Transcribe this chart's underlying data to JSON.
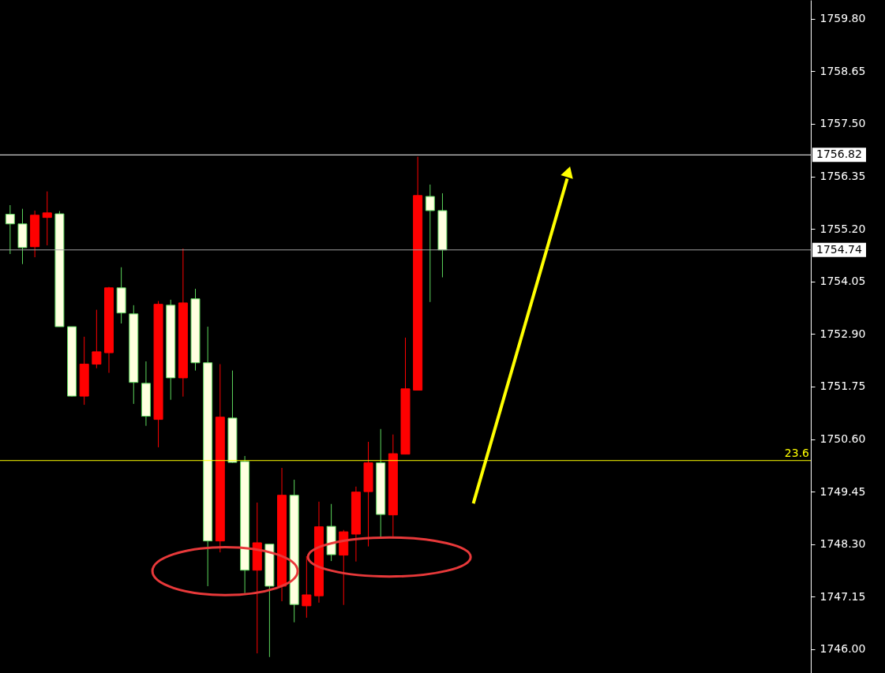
{
  "chart_data": {
    "type": "candlestick",
    "categories": [
      null,
      null,
      null,
      null,
      null,
      null,
      null,
      null,
      null,
      null,
      null,
      null,
      null,
      null,
      null,
      null,
      null,
      null,
      null,
      null,
      null,
      null,
      null,
      null,
      null,
      null,
      null,
      null,
      null,
      null,
      null,
      null,
      null,
      null,
      null,
      null,
      null,
      null,
      null,
      null,
      null,
      null,
      null,
      null,
      null,
      null,
      null,
      null,
      null,
      null,
      null,
      null,
      null,
      null,
      null,
      null,
      null,
      null,
      null,
      null,
      null,
      null,
      null,
      null,
      null
    ],
    "ohlc": [
      [
        1755.52,
        1755.72,
        1754.65,
        1755.31
      ],
      [
        1755.31,
        1755.64,
        1754.43,
        1754.79
      ],
      [
        1754.81,
        1755.6,
        1754.58,
        1755.5
      ],
      [
        1755.45,
        1756.02,
        1754.84,
        1755.55
      ],
      [
        1755.53,
        1755.59,
        1753.06,
        1753.06
      ],
      [
        1753.06,
        1753.06,
        1751.53,
        1751.54
      ],
      [
        1751.54,
        1752.84,
        1751.35,
        1752.24
      ],
      [
        1752.24,
        1753.43,
        1752.15,
        1752.51
      ],
      [
        1752.49,
        1753.93,
        1752.05,
        1753.91
      ],
      [
        1753.91,
        1754.36,
        1753.13,
        1753.36
      ],
      [
        1753.34,
        1753.53,
        1751.37,
        1751.84
      ],
      [
        1751.82,
        1752.3,
        1750.89,
        1751.1
      ],
      [
        1751.03,
        1753.62,
        1750.42,
        1753.55
      ],
      [
        1753.53,
        1753.65,
        1751.46,
        1751.94
      ],
      [
        1751.94,
        1754.77,
        1751.53,
        1753.58
      ],
      [
        1753.67,
        1753.89,
        1752.1,
        1752.27
      ],
      [
        1752.27,
        1753.06,
        1747.38,
        1748.37
      ],
      [
        1748.37,
        1752.24,
        1748.12,
        1751.08
      ],
      [
        1751.06,
        1752.1,
        1750.08,
        1750.09
      ],
      [
        1750.11,
        1750.23,
        1747.23,
        1747.73
      ],
      [
        1747.73,
        1749.21,
        1745.91,
        1748.33
      ],
      [
        1748.3,
        1748.3,
        1745.83,
        1747.38
      ],
      [
        1747.38,
        1749.97,
        1747.05,
        1749.37
      ],
      [
        1749.37,
        1749.71,
        1746.59,
        1746.98
      ],
      [
        1746.95,
        1748.04,
        1746.69,
        1747.19
      ],
      [
        1747.17,
        1749.23,
        1747.02,
        1748.68
      ],
      [
        1748.69,
        1749.18,
        1747.93,
        1748.07
      ],
      [
        1748.06,
        1748.61,
        1746.97,
        1748.57
      ],
      [
        1748.52,
        1749.56,
        1747.92,
        1749.44
      ],
      [
        1749.45,
        1750.54,
        1748.25,
        1750.08
      ],
      [
        1750.08,
        1750.82,
        1748.45,
        1748.95
      ],
      [
        1748.94,
        1750.7,
        1748.47,
        1750.28
      ],
      [
        1750.27,
        1752.82,
        1750.27,
        1751.7
      ],
      [
        1751.67,
        1756.78,
        1751.67,
        1755.93
      ],
      [
        1755.91,
        1756.17,
        1753.6,
        1755.6
      ],
      [
        1755.6,
        1755.98,
        1754.14,
        1754.74
      ],
      null,
      null,
      null,
      null,
      null,
      null,
      null,
      null,
      null,
      null,
      null,
      null,
      null,
      null,
      null,
      null,
      null,
      null,
      null,
      null,
      null,
      null,
      null,
      null,
      null,
      null,
      null,
      null,
      null
    ],
    "colors": [
      "#ffffe0",
      "#ffffe0",
      "#ff0000",
      "#ff0000",
      "#ffffe0",
      "#ffffe0",
      "#ff0000",
      "#ff0000",
      "#ff0000",
      "#ffffe0",
      "#ffffe0",
      "#ffffe0",
      "#ff0000",
      "#ffffe0",
      "#ff0000",
      "#ffffe0",
      "#ffffe0",
      "#ff0000",
      "#ffffe0",
      "#ffffe0",
      "#ff0000",
      "#ffffe0",
      "#ff0000",
      "#ffffe0",
      "#ff0000",
      "#ff0000",
      "#ffffe0",
      "#ff0000",
      "#ff0000",
      "#ff0000",
      "#ffffe0",
      "#ff0000",
      "#ff0000",
      "#ff0000",
      "#ffffe0",
      "#ffffe0",
      null,
      null,
      null,
      null,
      null,
      null,
      null,
      null,
      null,
      null,
      null,
      null,
      null,
      null,
      null,
      null,
      null,
      null,
      null,
      null,
      null,
      null,
      null,
      null,
      null,
      null,
      null,
      null,
      null
    ],
    "ylim": [
      1745.48,
      1760.21
    ],
    "yticks": [
      {
        "value": 1746.0,
        "label": "1746.00"
      },
      {
        "value": 1747.15,
        "label": "1747.15"
      },
      {
        "value": 1748.3,
        "label": "1748.30"
      },
      {
        "value": 1749.45,
        "label": "1749.45"
      },
      {
        "value": 1750.6,
        "label": "1750.60"
      },
      {
        "value": 1751.75,
        "label": "1751.75"
      },
      {
        "value": 1752.9,
        "label": "1752.90"
      },
      {
        "value": 1754.05,
        "label": "1754.05"
      },
      {
        "value": 1755.2,
        "label": "1755.20"
      },
      {
        "value": 1756.35,
        "label": "1756.35"
      },
      {
        "value": 1757.5,
        "label": "1757.50"
      },
      {
        "value": 1758.65,
        "label": "1758.65"
      },
      {
        "value": 1759.8,
        "label": "1759.80"
      }
    ],
    "ref_lines": [
      {
        "axis": "y",
        "value": 1756.82,
        "label": "1756.82",
        "color": "#ffffff"
      },
      {
        "axis": "y",
        "value": 1754.74,
        "label": "1754.74",
        "color": "#a0a0a0"
      },
      {
        "axis": "y",
        "value": 1750.13,
        "color": "#ffff00"
      }
    ],
    "annotations": [
      {
        "text": "23.6",
        "y": 1750.13
      }
    ],
    "tick_labels": "y",
    "grid": false
  }
}
